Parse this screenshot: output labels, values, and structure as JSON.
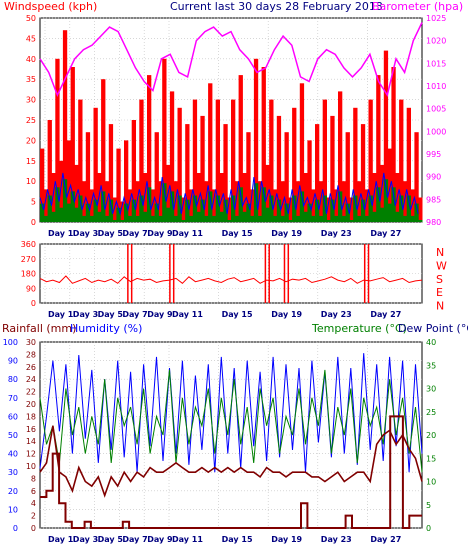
{
  "titles": {
    "windspeed": "Windspeed (kph)",
    "period": "Current last 30 days 28 February 2013",
    "barometer": "Barometer (hpa)",
    "rainfall": "Rainfall (mm)",
    "humidity": "Humidity (%)",
    "temperature": "Temperature (°C)",
    "dewpoint": "Dew Point (°C)"
  },
  "x_labels": [
    "Day 1",
    "Day 3",
    "Day 5",
    "Day 7",
    "Day 9",
    "Day 11",
    "Day 15",
    "Day 19",
    "Day 23",
    "Day 27"
  ],
  "direction_labels": [
    "N",
    "W",
    "S",
    "E",
    "N"
  ],
  "colors": {
    "wind": "#ff0000",
    "avg_wind": "#0000ff",
    "wind_fill": "#008000",
    "barometer": "#ff00ff",
    "direction": "#ff0000",
    "humidity": "#0000ff",
    "temperature": "#008000",
    "dewpoint": "#800000",
    "rain": "#800000",
    "grid": "#c0c0c0",
    "axis_text": "#000080"
  },
  "chart_data": [
    {
      "type": "bar",
      "name": "wind",
      "x_range": [
        0,
        30
      ],
      "ylim_left": [
        0,
        50
      ],
      "yticks_left": [
        0,
        5,
        10,
        15,
        20,
        25,
        30,
        35,
        40,
        45,
        50
      ],
      "ylim_right": [
        980,
        1025
      ],
      "yticks_right": [
        980,
        985,
        990,
        995,
        1000,
        1005,
        1010,
        1015,
        1020,
        1025
      ],
      "gust_envelope_x": [
        0,
        0.3,
        0.6,
        0.9,
        1.2,
        1.5,
        1.8,
        2.1,
        2.4,
        2.7,
        3.0,
        3.3,
        3.6,
        3.9,
        4.2,
        4.5,
        4.8,
        5.1,
        5.4,
        5.7,
        6.0,
        6.3,
        6.6,
        6.9,
        7.2,
        7.5,
        7.8,
        8.1,
        8.4,
        8.7,
        9.0,
        9.3,
        9.6,
        9.9,
        10.2,
        10.5,
        10.8,
        11.1,
        11.4,
        11.7,
        12.0,
        12.3,
        12.6,
        12.9,
        13.2,
        13.5,
        13.8,
        14.1,
        14.4,
        14.7,
        15.0,
        15.3,
        15.6,
        15.9,
        16.2,
        16.5,
        16.8,
        17.1,
        17.4,
        17.7,
        18.0,
        18.3,
        18.6,
        18.9,
        19.2,
        19.5,
        19.8,
        20.1,
        20.4,
        20.7,
        21.0,
        21.3,
        21.6,
        21.9,
        22.2,
        22.5,
        22.8,
        23.1,
        23.4,
        23.7,
        24.0,
        24.3,
        24.6,
        24.9,
        25.2,
        25.5,
        25.8,
        26.1,
        26.4,
        26.7,
        27.0,
        27.3,
        27.6,
        27.9,
        28.2,
        28.5,
        28.8,
        29.1,
        29.4,
        29.7
      ],
      "gust": [
        18,
        8,
        25,
        12,
        40,
        15,
        47,
        20,
        38,
        14,
        30,
        10,
        22,
        8,
        28,
        12,
        35,
        10,
        24,
        6,
        18,
        5,
        20,
        8,
        25,
        10,
        30,
        12,
        36,
        8,
        22,
        10,
        40,
        14,
        32,
        10,
        28,
        6,
        24,
        8,
        30,
        12,
        26,
        10,
        34,
        8,
        30,
        12,
        24,
        6,
        30,
        10,
        36,
        12,
        22,
        8,
        40,
        10,
        38,
        14,
        30,
        8,
        26,
        10,
        22,
        6,
        28,
        10,
        34,
        12,
        20,
        8,
        24,
        10,
        30,
        6,
        26,
        8,
        32,
        10,
        22,
        6,
        28,
        10,
        24,
        8,
        30,
        12,
        36,
        14,
        42,
        18,
        38,
        12,
        30,
        10,
        28,
        8,
        22,
        6
      ],
      "avg": [
        6,
        3,
        8,
        4,
        10,
        5,
        12,
        6,
        9,
        5,
        8,
        3,
        6,
        3,
        7,
        4,
        9,
        3,
        7,
        2,
        5,
        2,
        6,
        3,
        7,
        3,
        8,
        4,
        10,
        3,
        6,
        3,
        11,
        5,
        9,
        3,
        8,
        2,
        7,
        3,
        8,
        4,
        7,
        3,
        9,
        3,
        8,
        4,
        7,
        2,
        8,
        3,
        10,
        4,
        6,
        3,
        11,
        3,
        10,
        5,
        8,
        3,
        7,
        3,
        6,
        2,
        8,
        3,
        9,
        4,
        6,
        3,
        7,
        3,
        8,
        2,
        7,
        3,
        9,
        3,
        6,
        2,
        8,
        3,
        7,
        3,
        8,
        4,
        10,
        5,
        12,
        6,
        10,
        4,
        8,
        3,
        8,
        3,
        6,
        2
      ],
      "barometer": [
        1016,
        1013,
        1008,
        1012,
        1016,
        1018,
        1019,
        1021,
        1023,
        1022,
        1018,
        1014,
        1011,
        1009,
        1016,
        1017,
        1013,
        1012,
        1020,
        1022,
        1023,
        1021,
        1022,
        1018,
        1016,
        1013,
        1014,
        1018,
        1021,
        1019,
        1012,
        1011,
        1016,
        1018,
        1017,
        1014,
        1012,
        1014,
        1017,
        1011,
        1008,
        1016,
        1013,
        1020,
        1024
      ]
    },
    {
      "type": "line",
      "name": "wind_direction",
      "ylim": [
        0,
        360
      ],
      "yticks": [
        0,
        90,
        180,
        270,
        360
      ],
      "direction": [
        150,
        130,
        140,
        125,
        165,
        120,
        135,
        150,
        125,
        140,
        130,
        145,
        120,
        160,
        130,
        150,
        140,
        145,
        125,
        135,
        140,
        150,
        120,
        160,
        130,
        140,
        150,
        135,
        125,
        145,
        155,
        130,
        140,
        150,
        120,
        140,
        135,
        150,
        130,
        145,
        140,
        150,
        125,
        135,
        145,
        160,
        140,
        130,
        150,
        120,
        140,
        135,
        145,
        155,
        130,
        140,
        150,
        125,
        135,
        140
      ]
    },
    {
      "type": "line",
      "name": "rain_humidity_temperature",
      "ylim_rain": [
        0,
        30
      ],
      "yticks_rain": [
        0,
        2,
        4,
        6,
        8,
        10,
        12,
        14,
        16,
        18,
        20,
        22,
        24,
        26,
        28,
        30
      ],
      "ylim_humidity": [
        0,
        100
      ],
      "yticks_humidity": [
        0,
        10,
        20,
        30,
        40,
        50,
        60,
        70,
        80,
        90,
        100
      ],
      "ylim_temp": [
        0,
        40
      ],
      "yticks_temp": [
        0,
        5,
        10,
        15,
        20,
        25,
        30,
        35,
        40
      ],
      "humidity": [
        32,
        60,
        90,
        52,
        88,
        40,
        93,
        48,
        85,
        35,
        80,
        42,
        90,
        38,
        84,
        30,
        88,
        44,
        92,
        36,
        86,
        40,
        90,
        34,
        82,
        42,
        88,
        30,
        92,
        40,
        86,
        32,
        90,
        44,
        84,
        36,
        92,
        38,
        88,
        42,
        86,
        30,
        90,
        46,
        84,
        38,
        92,
        40,
        86,
        34,
        94,
        42,
        88,
        36,
        92,
        44,
        90,
        30,
        88,
        40
      ],
      "temperature": [
        28,
        18,
        22,
        14,
        30,
        20,
        26,
        16,
        24,
        18,
        32,
        14,
        28,
        22,
        26,
        18,
        30,
        16,
        24,
        20,
        34,
        14,
        28,
        18,
        26,
        22,
        30,
        16,
        28,
        20,
        32,
        18,
        26,
        14,
        30,
        22,
        28,
        16,
        24,
        20,
        30,
        18,
        28,
        22,
        34,
        16,
        26,
        20,
        30,
        14,
        28,
        22,
        26,
        18,
        32,
        20,
        28,
        16,
        26,
        12
      ],
      "dewpoint": [
        12,
        14,
        22,
        12,
        11,
        8,
        13,
        10,
        9,
        11,
        7,
        11,
        9,
        12,
        10,
        12,
        11,
        13,
        12,
        12,
        13,
        14,
        13,
        12,
        12,
        13,
        12,
        13,
        12,
        13,
        12,
        13,
        12,
        12,
        11,
        13,
        12,
        12,
        11,
        12,
        12,
        12,
        11,
        11,
        10,
        11,
        12,
        10,
        11,
        12,
        12,
        10,
        18,
        20,
        21,
        18,
        20,
        17,
        15,
        10
      ],
      "rain": [
        5,
        6,
        12,
        4,
        1,
        0,
        0,
        1,
        0,
        0,
        0,
        0,
        0,
        1,
        0,
        0,
        0,
        0,
        0,
        0,
        0,
        0,
        0,
        0,
        0,
        0,
        0,
        0,
        0,
        0,
        0,
        0,
        0,
        0,
        0,
        0,
        0,
        0,
        0,
        0,
        0,
        4,
        0,
        0,
        0,
        0,
        0,
        0,
        2,
        0,
        0,
        0,
        0,
        0,
        0,
        18,
        18,
        0,
        2,
        2
      ]
    }
  ]
}
